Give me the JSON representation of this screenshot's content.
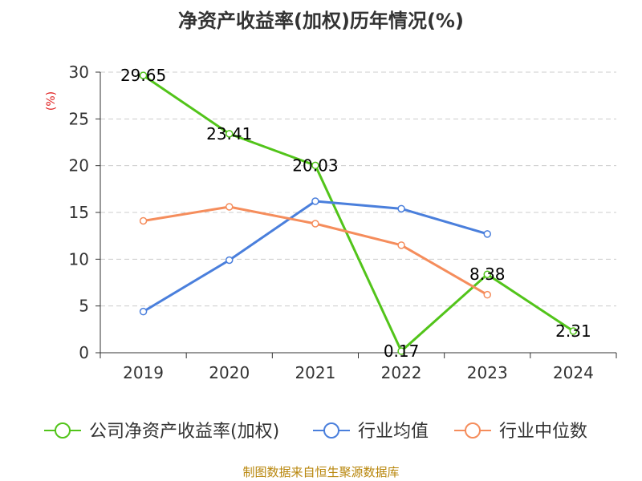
{
  "title": "净资产收益率(加权)历年情况(%)",
  "source": "制图数据来自恒生聚源数据库",
  "chart_data": {
    "type": "line",
    "categories": [
      "2019",
      "2020",
      "2021",
      "2022",
      "2023",
      "2024"
    ],
    "ylabel": "(%)",
    "ylim": [
      0,
      30
    ],
    "yticks": [
      0,
      5,
      10,
      15,
      20,
      25,
      30
    ],
    "grid": true,
    "legend_position": "bottom",
    "series": [
      {
        "name": "公司净资产收益率(加权)",
        "color": "#52c41a",
        "values": [
          29.65,
          23.41,
          20.03,
          0.17,
          8.38,
          2.31
        ],
        "labels": [
          "29.65",
          "23.41",
          "20.03",
          "0.17",
          "8.38",
          "2.31"
        ]
      },
      {
        "name": "行业均值",
        "color": "#4a7fdc",
        "values": [
          4.4,
          9.9,
          16.2,
          15.4,
          12.7,
          null
        ]
      },
      {
        "name": "行业中位数",
        "color": "#f58d5c",
        "values": [
          14.1,
          15.6,
          13.8,
          11.5,
          6.2,
          null
        ]
      }
    ]
  }
}
